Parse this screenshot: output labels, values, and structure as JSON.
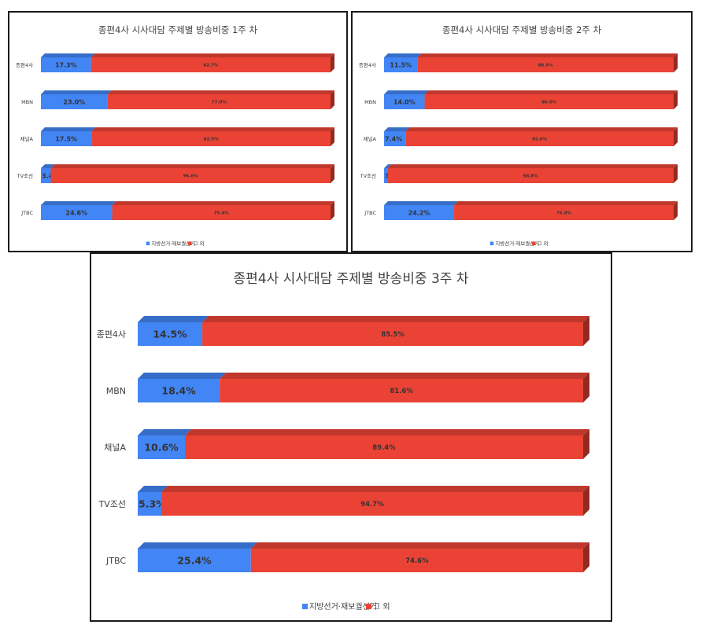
{
  "chart_data": [
    {
      "type": "bar",
      "stacked": true,
      "orientation": "horizontal",
      "title": "종편4사 시사대담 주제별 방송비중 1주 차",
      "categories": [
        "종편4사",
        "MBN",
        "채널A",
        "TV조선",
        "JTBC"
      ],
      "series": [
        {
          "name": "지방선거·재보궐선거",
          "color": "#4285f4",
          "values": [
            17.3,
            23.0,
            17.5,
            3.4,
            24.6
          ],
          "labels": [
            "17.3%",
            "23.0%",
            "17.5%",
            "3.4%",
            "24.6%"
          ]
        },
        {
          "name": "그 외",
          "color": "#ea4335",
          "values": [
            82.7,
            77.0,
            82.5,
            96.6,
            75.4
          ],
          "labels": [
            "82.7%",
            "77.0%",
            "82.5%",
            "96.6%",
            "75.4%"
          ]
        }
      ],
      "xlim": [
        0,
        100
      ],
      "legend": "bottom"
    },
    {
      "type": "bar",
      "stacked": true,
      "orientation": "horizontal",
      "title": "종편4사 시사대담 주제별 방송비중 2주 차",
      "categories": [
        "종편4사",
        "MBN",
        "채널A",
        "TV조선",
        "JTBC"
      ],
      "series": [
        {
          "name": "지방선거·재보궐선거",
          "color": "#4285f4",
          "values": [
            11.5,
            14.0,
            7.4,
            1.2,
            24.2
          ],
          "labels": [
            "11.5%",
            "14.0%",
            "7.4%",
            "1.2%",
            "24.2%"
          ]
        },
        {
          "name": "그 외",
          "color": "#ea4335",
          "values": [
            88.5,
            86.0,
            92.6,
            98.8,
            75.8
          ],
          "labels": [
            "88.5%",
            "86.0%",
            "92.6%",
            "98.8%",
            "75.8%"
          ]
        }
      ],
      "xlim": [
        0,
        100
      ],
      "legend": "bottom"
    },
    {
      "type": "bar",
      "stacked": true,
      "orientation": "horizontal",
      "title": "종편4사 시사대담 주제별 방송비중 3주 차",
      "categories": [
        "종편4사",
        "MBN",
        "채널A",
        "TV조선",
        "JTBC"
      ],
      "series": [
        {
          "name": "지방선거·재보궐선거",
          "color": "#4285f4",
          "values": [
            14.5,
            18.4,
            10.6,
            5.3,
            25.4
          ],
          "labels": [
            "14.5%",
            "18.4%",
            "10.6%",
            "5.3%",
            "25.4%"
          ]
        },
        {
          "name": "그 외",
          "color": "#ea4335",
          "values": [
            85.5,
            81.6,
            89.4,
            94.7,
            74.6
          ],
          "labels": [
            "85.5%",
            "81.6%",
            "89.4%",
            "94.7%",
            "74.6%"
          ]
        }
      ],
      "xlim": [
        0,
        100
      ],
      "legend": "bottom"
    }
  ]
}
